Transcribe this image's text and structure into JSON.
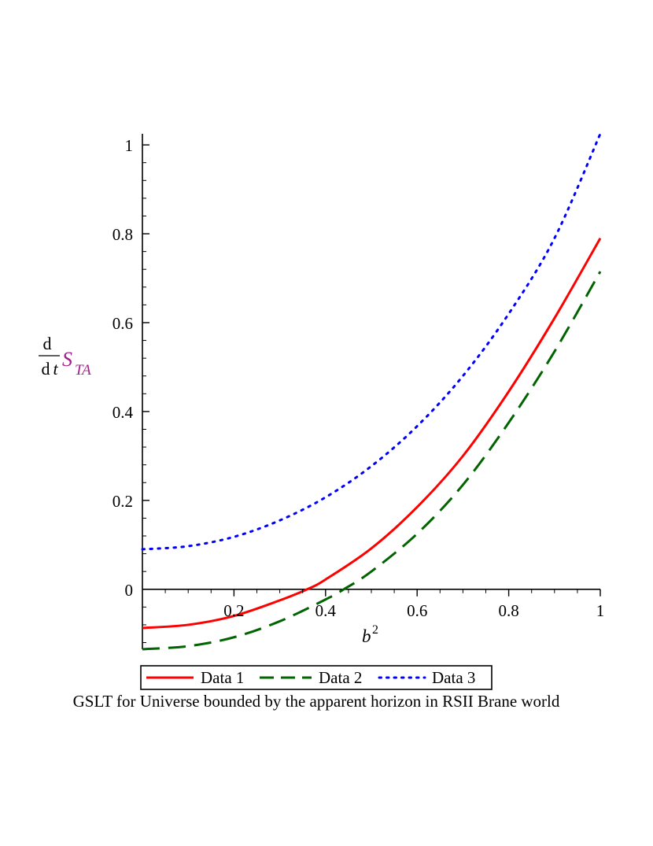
{
  "chart_data": {
    "type": "line",
    "title": "GSLT for Universe bounded by the apparent horizon in RSII Brane world",
    "xlabel": {
      "base": "b",
      "sup": "2"
    },
    "ylabel": {
      "numerator": "d",
      "denominator_d": "d",
      "denominator_var": "t",
      "symbol": "S",
      "subscript": "TA"
    },
    "xlim": [
      0,
      1
    ],
    "ylim": [
      -0.135,
      1.025
    ],
    "x_ticks": [
      {
        "value": 0.2,
        "label": "0.2"
      },
      {
        "value": 0.4,
        "label": "0.4"
      },
      {
        "value": 0.6,
        "label": "0.6"
      },
      {
        "value": 0.8,
        "label": "0.8"
      },
      {
        "value": 1.0,
        "label": "1"
      }
    ],
    "y_ticks": [
      {
        "value": 0,
        "label": "0"
      },
      {
        "value": 0.2,
        "label": "0.2"
      },
      {
        "value": 0.4,
        "label": "0.4"
      },
      {
        "value": 0.6,
        "label": "0.6"
      },
      {
        "value": 0.8,
        "label": "0.8"
      },
      {
        "value": 1.0,
        "label": "1"
      }
    ],
    "legend_position": "bottom",
    "series": [
      {
        "name": "Data 1",
        "color": "#ff0000",
        "style": "solid",
        "x": [
          0,
          0.1,
          0.2,
          0.3,
          0.36,
          0.4,
          0.5,
          0.6,
          0.7,
          0.8,
          0.9,
          1.0
        ],
        "y": [
          -0.087,
          -0.08,
          -0.06,
          -0.025,
          0.0,
          0.022,
          0.092,
          0.185,
          0.3,
          0.445,
          0.61,
          0.79
        ]
      },
      {
        "name": "Data 2",
        "color": "#006400",
        "style": "dashed",
        "x": [
          0,
          0.1,
          0.2,
          0.3,
          0.4,
          0.44,
          0.5,
          0.6,
          0.7,
          0.8,
          0.9,
          1.0
        ],
        "y": [
          -0.135,
          -0.128,
          -0.108,
          -0.072,
          -0.023,
          0.0,
          0.04,
          0.125,
          0.235,
          0.375,
          0.535,
          0.715
        ]
      },
      {
        "name": "Data 3",
        "color": "#0000ff",
        "style": "dotted",
        "x": [
          0,
          0.1,
          0.2,
          0.3,
          0.4,
          0.5,
          0.6,
          0.7,
          0.8,
          0.9,
          1.0
        ],
        "y": [
          0.09,
          0.097,
          0.118,
          0.155,
          0.207,
          0.277,
          0.367,
          0.48,
          0.62,
          0.79,
          1.025
        ]
      }
    ]
  }
}
